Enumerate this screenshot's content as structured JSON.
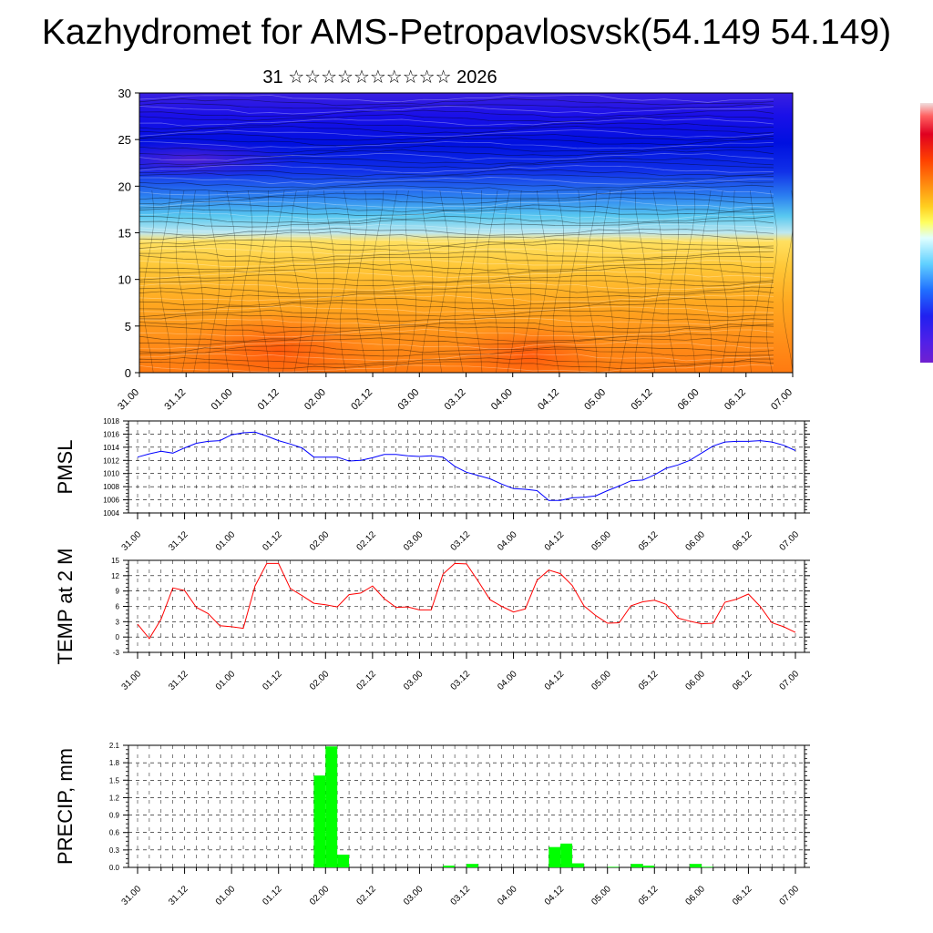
{
  "header": {
    "title": "Kazhydromet for AMS-Petropavlosvsk(54.149 54.149)",
    "subtitle": "31 ☆☆☆☆☆☆☆☆☆☆ 2026"
  },
  "colors": {
    "pmsl_line": "#0000ff",
    "temp_line": "#ff0000",
    "precip_bar": "#00ff00",
    "section_high": "#4000ff",
    "section_low": "#ff6000"
  },
  "chart_data": [
    {
      "type": "heatmap",
      "name": "vertical-section",
      "ylim": [
        0,
        30
      ],
      "yticks": [
        0,
        5,
        10,
        15,
        20,
        25,
        30
      ],
      "x_tick_labels": [
        "31.00",
        "31.12",
        "01.00",
        "01.12",
        "02.00",
        "02.12",
        "03.00",
        "03.12",
        "04.00",
        "04.12",
        "05.00",
        "05.12",
        "06.00",
        "06.12",
        "07.00"
      ],
      "bands_description": "orange near surface, yellow 10-15, cyan/blue 15-22, dark blue/violet 22-30, overlaid wind barbs and streamlines"
    },
    {
      "type": "line",
      "ylabel": "PMSL",
      "ylim": [
        1004,
        1018
      ],
      "yticks": [
        1004,
        1006,
        1008,
        1010,
        1012,
        1014,
        1016,
        1018
      ],
      "x_tick_labels": [
        "31.00",
        "31.12",
        "01.00",
        "01.12",
        "02.00",
        "02.12",
        "03.00",
        "03.12",
        "04.00",
        "04.12",
        "05.00",
        "05.12",
        "06.00",
        "06.12",
        "07.00"
      ],
      "x_hours": [
        0,
        3,
        6,
        9,
        12,
        15,
        18,
        21,
        24,
        27,
        30,
        33,
        36,
        39,
        42,
        45,
        48,
        51,
        54,
        57,
        60,
        63,
        66,
        69,
        72,
        75,
        78,
        81,
        84,
        87,
        90,
        93,
        96,
        99,
        102,
        105,
        108,
        111,
        114,
        117,
        120,
        123,
        126,
        129,
        132,
        135,
        138,
        141,
        144,
        147,
        150,
        153,
        156,
        159,
        162,
        165,
        168
      ],
      "values": [
        1012.5,
        1013.0,
        1013.4,
        1013.1,
        1013.9,
        1014.6,
        1014.9,
        1015.0,
        1015.9,
        1016.2,
        1016.3,
        1015.7,
        1015.0,
        1014.5,
        1013.9,
        1012.5,
        1012.5,
        1012.5,
        1011.9,
        1012.0,
        1012.4,
        1012.9,
        1012.9,
        1012.7,
        1012.6,
        1012.7,
        1012.5,
        1011.1,
        1010.2,
        1009.7,
        1009.2,
        1008.4,
        1007.7,
        1007.6,
        1007.4,
        1005.9,
        1005.9,
        1006.3,
        1006.4,
        1006.6,
        1007.4,
        1008.1,
        1008.9,
        1009.0,
        1009.8,
        1010.8,
        1011.3,
        1012.0,
        1013.1,
        1014.2,
        1014.8,
        1014.9,
        1014.9,
        1015.0,
        1014.8,
        1014.3,
        1013.5
      ]
    },
    {
      "type": "line",
      "ylabel": "TEMP at 2 M",
      "ylim": [
        -3,
        15
      ],
      "yticks": [
        -3,
        0,
        3,
        6,
        9,
        12,
        15
      ],
      "x_tick_labels": [
        "31.00",
        "31.12",
        "01.00",
        "01.12",
        "02.00",
        "02.12",
        "03.00",
        "03.12",
        "04.00",
        "04.12",
        "05.00",
        "05.12",
        "06.00",
        "06.12",
        "07.00"
      ],
      "x_hours": [
        0,
        3,
        6,
        9,
        12,
        15,
        18,
        21,
        24,
        27,
        30,
        33,
        36,
        39,
        42,
        45,
        48,
        51,
        54,
        57,
        60,
        63,
        66,
        69,
        72,
        75,
        78,
        81,
        84,
        87,
        90,
        93,
        96,
        99,
        102,
        105,
        108,
        111,
        114,
        117,
        120,
        123,
        126,
        129,
        132,
        135,
        138,
        141,
        144,
        147,
        150,
        153,
        156,
        159,
        162,
        165,
        168
      ],
      "values": [
        2.5,
        -0.3,
        3.5,
        9.6,
        9.1,
        5.8,
        4.6,
        2.2,
        2.0,
        1.7,
        10.0,
        14.4,
        14.4,
        9.5,
        8.1,
        6.6,
        6.3,
        5.9,
        8.3,
        8.6,
        10.0,
        7.5,
        5.8,
        5.9,
        5.3,
        5.3,
        12.3,
        14.4,
        14.3,
        10.9,
        7.3,
        6.0,
        4.9,
        5.5,
        11.1,
        13.1,
        12.4,
        10.1,
        6.1,
        4.2,
        2.7,
        2.8,
        6.1,
        6.9,
        7.2,
        6.4,
        3.7,
        3.1,
        2.6,
        2.7,
        6.8,
        7.4,
        8.4,
        6.0,
        2.8,
        2.0,
        0.9
      ]
    },
    {
      "type": "bar",
      "ylabel": "PRECIP, mm",
      "ylim": [
        0,
        2.1
      ],
      "yticks": [
        "0.0",
        "0.3",
        "0.6",
        "0.9",
        "1.2",
        "1.5",
        "1.8",
        "2.1"
      ],
      "x_tick_labels": [
        "31.00",
        "31.12",
        "01.00",
        "01.12",
        "02.00",
        "02.12",
        "03.00",
        "03.12",
        "04.00",
        "04.12",
        "05.00",
        "05.12",
        "06.00",
        "06.12",
        "07.00"
      ],
      "bar_hours_start": [
        45,
        48,
        51,
        78,
        84,
        105,
        108,
        111,
        120,
        126,
        129,
        141,
        144
      ],
      "values": [
        1.58,
        2.08,
        0.22,
        0.03,
        0.06,
        0.35,
        0.41,
        0.07,
        0.01,
        0.06,
        0.03,
        0.06,
        0.01
      ]
    }
  ]
}
